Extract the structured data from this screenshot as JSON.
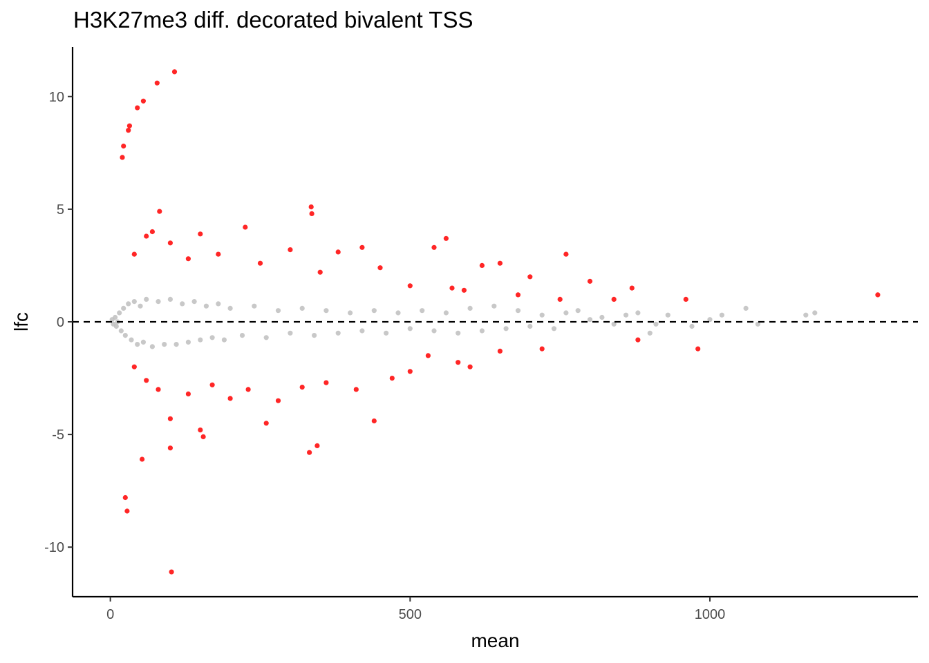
{
  "chart_data": {
    "type": "scatter",
    "title": "H3K27me3 diff. decorated bivalent TSS",
    "xlabel": "mean",
    "ylabel": "lfc",
    "xlim": [
      -63,
      1347
    ],
    "ylim": [
      -12.2,
      12.2
    ],
    "x_ticks": [
      0,
      500,
      1000
    ],
    "x_tick_labels": [
      "0",
      "500",
      "1000"
    ],
    "y_ticks": [
      -10,
      -5,
      0,
      5,
      10
    ],
    "y_tick_labels": [
      "-10",
      "-5",
      "0",
      "5",
      "10"
    ],
    "reference_line": {
      "y": 0,
      "style": "dashed",
      "color": "#000000"
    },
    "grid": false,
    "legend": "none",
    "colors": {
      "significant": "#ff0000",
      "not_significant": "#bebebe"
    },
    "series": [
      {
        "group": "not_significant",
        "color": "#bebebe",
        "note": "dense cloud of non-significant features near lfc 0",
        "points": [
          [
            3,
            0.1
          ],
          [
            5,
            -0.1
          ],
          [
            8,
            0.2
          ],
          [
            10,
            -0.2
          ],
          [
            12,
            0.0
          ],
          [
            15,
            0.4
          ],
          [
            18,
            -0.4
          ],
          [
            22,
            0.6
          ],
          [
            25,
            -0.6
          ],
          [
            30,
            0.8
          ],
          [
            35,
            -0.8
          ],
          [
            40,
            0.9
          ],
          [
            45,
            -1.0
          ],
          [
            50,
            0.7
          ],
          [
            55,
            -0.9
          ],
          [
            60,
            1.0
          ],
          [
            70,
            -1.1
          ],
          [
            80,
            0.9
          ],
          [
            90,
            -1.0
          ],
          [
            100,
            1.0
          ],
          [
            110,
            -1.0
          ],
          [
            120,
            0.8
          ],
          [
            130,
            -0.9
          ],
          [
            140,
            0.9
          ],
          [
            150,
            -0.8
          ],
          [
            160,
            0.7
          ],
          [
            170,
            -0.7
          ],
          [
            180,
            0.8
          ],
          [
            190,
            -0.8
          ],
          [
            200,
            0.6
          ],
          [
            220,
            -0.6
          ],
          [
            240,
            0.7
          ],
          [
            260,
            -0.7
          ],
          [
            280,
            0.5
          ],
          [
            300,
            -0.5
          ],
          [
            320,
            0.6
          ],
          [
            340,
            -0.6
          ],
          [
            360,
            0.5
          ],
          [
            380,
            -0.5
          ],
          [
            400,
            0.4
          ],
          [
            420,
            -0.4
          ],
          [
            440,
            0.5
          ],
          [
            460,
            -0.5
          ],
          [
            480,
            0.4
          ],
          [
            500,
            -0.3
          ],
          [
            520,
            0.5
          ],
          [
            540,
            -0.4
          ],
          [
            560,
            0.4
          ],
          [
            580,
            -0.5
          ],
          [
            600,
            0.6
          ],
          [
            620,
            -0.4
          ],
          [
            640,
            0.7
          ],
          [
            660,
            -0.3
          ],
          [
            680,
            0.5
          ],
          [
            700,
            -0.2
          ],
          [
            720,
            0.3
          ],
          [
            740,
            -0.3
          ],
          [
            760,
            0.4
          ],
          [
            780,
            0.5
          ],
          [
            800,
            0.1
          ],
          [
            820,
            0.2
          ],
          [
            840,
            -0.1
          ],
          [
            860,
            0.3
          ],
          [
            880,
            0.4
          ],
          [
            900,
            -0.5
          ],
          [
            910,
            -0.1
          ],
          [
            930,
            0.3
          ],
          [
            970,
            -0.2
          ],
          [
            1000,
            0.1
          ],
          [
            1020,
            0.3
          ],
          [
            1060,
            0.6
          ],
          [
            1080,
            -0.1
          ],
          [
            1160,
            0.3
          ],
          [
            1175,
            0.4
          ]
        ]
      },
      {
        "group": "significant",
        "color": "#ff0000",
        "note": "significant features, lfc up and down",
        "points": [
          [
            20,
            7.3
          ],
          [
            22,
            7.8
          ],
          [
            30,
            8.5
          ],
          [
            32,
            8.7
          ],
          [
            45,
            9.5
          ],
          [
            55,
            9.8
          ],
          [
            78,
            10.6
          ],
          [
            107,
            11.1
          ],
          [
            82,
            4.9
          ],
          [
            335,
            5.1
          ],
          [
            336,
            4.8
          ],
          [
            560,
            3.7
          ],
          [
            760,
            3.0
          ],
          [
            1280,
            1.2
          ],
          [
            870,
            1.5
          ],
          [
            960,
            1.0
          ],
          [
            150,
            3.9
          ],
          [
            225,
            4.2
          ],
          [
            300,
            3.2
          ],
          [
            420,
            3.3
          ],
          [
            540,
            3.3
          ],
          [
            620,
            2.5
          ],
          [
            650,
            2.6
          ],
          [
            700,
            2.0
          ],
          [
            800,
            1.8
          ],
          [
            840,
            1.0
          ],
          [
            40,
            3.0
          ],
          [
            60,
            3.8
          ],
          [
            70,
            4.0
          ],
          [
            100,
            3.5
          ],
          [
            130,
            2.8
          ],
          [
            180,
            3.0
          ],
          [
            250,
            2.6
          ],
          [
            350,
            2.2
          ],
          [
            380,
            3.1
          ],
          [
            450,
            2.4
          ],
          [
            500,
            1.6
          ],
          [
            570,
            1.5
          ],
          [
            590,
            1.4
          ],
          [
            680,
            1.2
          ],
          [
            750,
            1.0
          ],
          [
            25,
            -7.8
          ],
          [
            28,
            -8.4
          ],
          [
            53,
            -6.1
          ],
          [
            100,
            -5.6
          ],
          [
            102,
            -11.1
          ],
          [
            155,
            -5.1
          ],
          [
            150,
            -4.8
          ],
          [
            332,
            -5.8
          ],
          [
            345,
            -5.5
          ],
          [
            440,
            -4.4
          ],
          [
            260,
            -4.5
          ],
          [
            410,
            -3.0
          ],
          [
            500,
            -2.2
          ],
          [
            600,
            -2.0
          ],
          [
            720,
            -1.2
          ],
          [
            880,
            -0.8
          ],
          [
            980,
            -1.2
          ],
          [
            40,
            -2.0
          ],
          [
            60,
            -2.6
          ],
          [
            80,
            -3.0
          ],
          [
            100,
            -4.3
          ],
          [
            130,
            -3.2
          ],
          [
            170,
            -2.8
          ],
          [
            200,
            -3.4
          ],
          [
            230,
            -3.0
          ],
          [
            280,
            -3.5
          ],
          [
            320,
            -2.9
          ],
          [
            360,
            -2.7
          ],
          [
            470,
            -2.5
          ],
          [
            530,
            -1.5
          ],
          [
            580,
            -1.8
          ],
          [
            650,
            -1.3
          ]
        ]
      }
    ]
  }
}
